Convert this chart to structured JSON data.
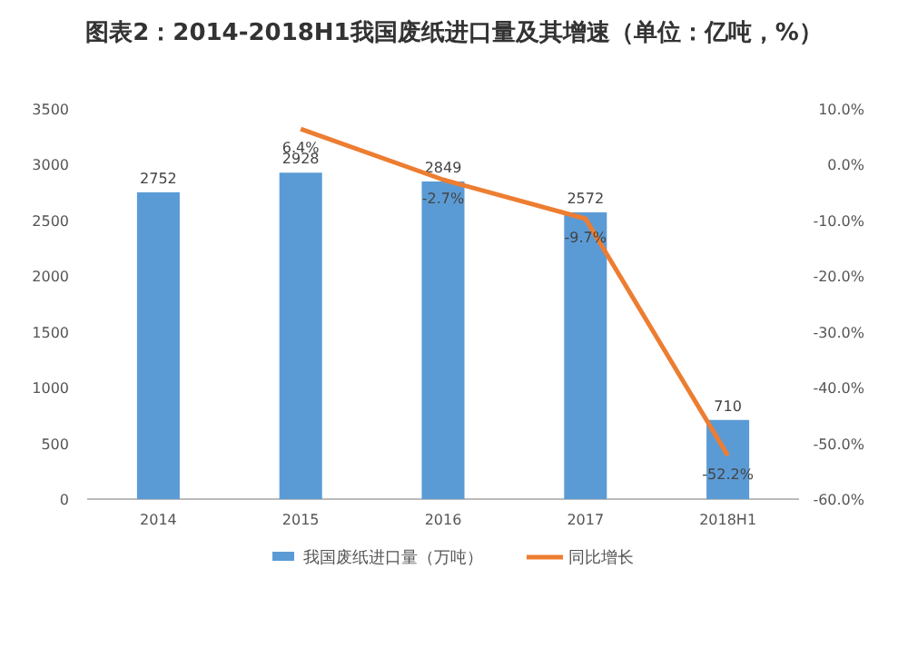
{
  "chart_data": {
    "type": "bar",
    "title": "图表2：2014-2018H1我国废纸进口量及其增速（单位：亿吨，%）",
    "categories": [
      "2014",
      "2015",
      "2016",
      "2017",
      "2018H1"
    ],
    "series": [
      {
        "name": "我国废纸进口量（万吨）",
        "color": "#5b9bd5",
        "values": [
          2752,
          2928,
          2849,
          2572,
          710
        ],
        "value_labels": [
          "2752",
          "2928",
          "2849",
          "2572",
          "710"
        ]
      },
      {
        "name": "同比增长",
        "type": "line",
        "axis": "y2",
        "color": "#ed7d31",
        "values": [
          null,
          6.4,
          -2.7,
          -9.7,
          -52.2
        ],
        "value_labels": [
          null,
          "6.4%",
          "-2.7%",
          "-9.7%",
          "-52.2%"
        ]
      }
    ],
    "ylim": [
      0,
      3500
    ],
    "yticks": [
      0,
      500,
      1000,
      1500,
      2000,
      2500,
      3000,
      3500
    ],
    "y2lim": [
      -60,
      10
    ],
    "y2ticks": [
      {
        "value": -60,
        "label": "-60.0%"
      },
      {
        "value": -50,
        "label": "-50.0%"
      },
      {
        "value": -40,
        "label": "-40.0%"
      },
      {
        "value": -30,
        "label": "-30.0%"
      },
      {
        "value": -20,
        "label": "-20.0%"
      },
      {
        "value": -10,
        "label": "-10.0%"
      },
      {
        "value": 0,
        "label": "0.0%"
      },
      {
        "value": 10,
        "label": "10.0%"
      }
    ],
    "grid": false,
    "legend": "bottom",
    "marker": "none"
  }
}
